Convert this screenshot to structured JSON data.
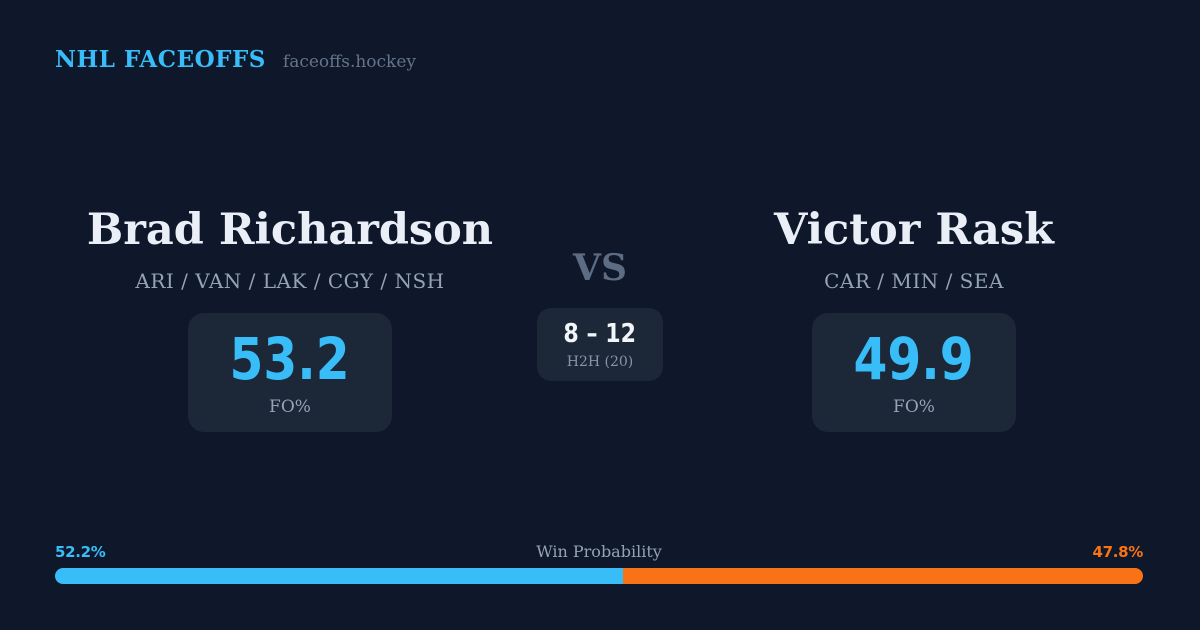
{
  "brand": {
    "title": "NHL FACEOFFS",
    "domain": "faceoffs.hockey"
  },
  "matchup": {
    "vs_label": "VS",
    "player_left": {
      "name": "Brad Richardson",
      "teams": "ARI / VAN / LAK / CGY / NSH",
      "fo_value": "53.2",
      "fo_label": "FO%"
    },
    "player_right": {
      "name": "Victor Rask",
      "teams": "CAR / MIN / SEA",
      "fo_value": "49.9",
      "fo_label": "FO%"
    },
    "h2h": {
      "record": "8 – 12",
      "label": "H2H (20)"
    }
  },
  "win_probability": {
    "label": "Win Probability",
    "left_pct": "52.2%",
    "right_pct": "47.8%",
    "left_value": 52.2,
    "right_value": 47.8,
    "left_style": "width:52.2%",
    "right_style": "width:47.8%"
  },
  "colors": {
    "background": "#0f172a",
    "card": "#1c2737",
    "accent_blue": "#38bdf8",
    "accent_orange": "#f97316",
    "text_primary": "#e9eef7",
    "text_secondary": "#94a3b8",
    "text_muted": "#64748b"
  }
}
